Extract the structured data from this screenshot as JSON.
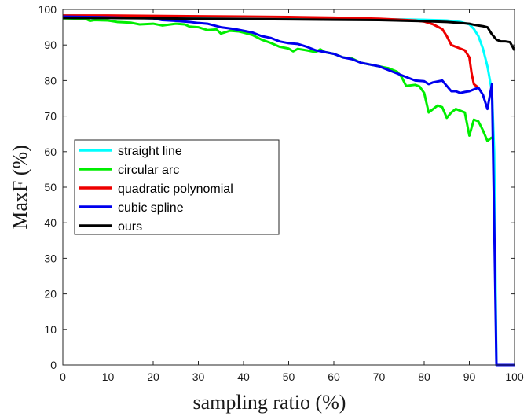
{
  "chart_data": {
    "type": "line",
    "title": "",
    "xlabel": "sampling ratio (%)",
    "ylabel": "MaxF (%)",
    "xlim": [
      0,
      100
    ],
    "ylim": [
      0,
      100
    ],
    "xticks": [
      0,
      10,
      20,
      30,
      40,
      50,
      60,
      70,
      80,
      90,
      100
    ],
    "yticks": [
      0,
      10,
      20,
      30,
      40,
      50,
      60,
      70,
      80,
      90,
      100
    ],
    "grid": false,
    "legend_position": "center-left",
    "series": [
      {
        "name": "straight line",
        "color": "#00ffff",
        "x": [
          0,
          10,
          20,
          30,
          40,
          50,
          60,
          70,
          75,
          80,
          85,
          88,
          90,
          91,
          92,
          93,
          94,
          95,
          95.5,
          96,
          96.5,
          97,
          100
        ],
        "y": [
          98.3,
          98.2,
          98.1,
          98.0,
          97.8,
          97.6,
          97.5,
          97.3,
          97.2,
          97.1,
          96.9,
          96.5,
          95.8,
          94.5,
          92.5,
          89.0,
          84.0,
          77.0,
          60.0,
          0,
          0,
          0,
          0
        ]
      },
      {
        "name": "circular arc",
        "color": "#00ee00",
        "x": [
          0,
          5,
          6,
          7,
          10,
          12,
          15,
          17,
          20,
          22,
          25,
          27,
          28,
          30,
          32,
          34,
          35,
          37,
          39,
          40,
          42,
          44,
          46,
          48,
          50,
          51,
          52,
          54,
          56,
          57,
          58,
          60,
          62,
          64,
          66,
          68,
          70,
          72,
          74,
          75,
          76,
          78,
          79,
          80,
          81,
          82,
          83,
          84,
          85,
          86,
          87,
          88,
          89,
          90,
          91,
          92,
          93,
          94,
          95
        ],
        "y": [
          97.5,
          97.4,
          96.8,
          97.0,
          96.9,
          96.5,
          96.3,
          95.8,
          96.0,
          95.5,
          96.0,
          95.8,
          95.2,
          95.0,
          94.2,
          94.4,
          93.2,
          94.0,
          93.8,
          93.5,
          92.8,
          91.5,
          90.6,
          89.5,
          89.0,
          88.2,
          88.9,
          88.5,
          88.0,
          88.8,
          88.0,
          87.5,
          86.5,
          86.2,
          85.0,
          84.5,
          84.0,
          83.5,
          82.5,
          81.0,
          78.5,
          78.8,
          78.3,
          76.5,
          71.0,
          72.0,
          73.0,
          72.5,
          69.5,
          71.0,
          72.0,
          71.5,
          71.0,
          64.5,
          69.0,
          68.5,
          66.0,
          63.0,
          64.0
        ]
      },
      {
        "name": "quadratic polynomial",
        "color": "#ee0000",
        "x": [
          0,
          10,
          20,
          30,
          40,
          50,
          60,
          70,
          75,
          78,
          80,
          82,
          84,
          85,
          86,
          87,
          88,
          89,
          90,
          90.5,
          91,
          92
        ],
        "y": [
          98.3,
          98.3,
          98.2,
          98.1,
          98.0,
          97.9,
          97.7,
          97.4,
          97.1,
          96.9,
          96.6,
          95.8,
          94.5,
          92.5,
          90.0,
          89.5,
          89.0,
          88.5,
          86.5,
          82.0,
          79.0,
          78.0
        ]
      },
      {
        "name": "cubic spline",
        "color": "#0000ee",
        "x": [
          0,
          10,
          20,
          22,
          25,
          28,
          30,
          32,
          35,
          38,
          40,
          42,
          44,
          46,
          48,
          50,
          52,
          54,
          56,
          58,
          60,
          62,
          64,
          66,
          68,
          70,
          72,
          74,
          76,
          78,
          80,
          81,
          82,
          84,
          85,
          86,
          87,
          88,
          89,
          90,
          91,
          92,
          93,
          94,
          95,
          95.5,
          96,
          97,
          98,
          99,
          100
        ],
        "y": [
          98.0,
          97.8,
          97.5,
          97.0,
          96.8,
          96.5,
          96.2,
          96.0,
          95.0,
          94.5,
          94.0,
          93.5,
          92.5,
          92.0,
          91.0,
          90.5,
          90.3,
          89.5,
          88.5,
          88.0,
          87.5,
          86.5,
          86.0,
          85.0,
          84.5,
          84.0,
          83.0,
          82.0,
          81.0,
          80.0,
          79.8,
          79.0,
          79.5,
          80.0,
          78.5,
          77.0,
          77.0,
          76.5,
          76.8,
          77.0,
          77.5,
          78.0,
          76.0,
          72.0,
          79.0,
          40.0,
          0,
          0,
          0,
          0,
          0
        ]
      },
      {
        "name": "ours",
        "color": "#000000",
        "x": [
          0,
          10,
          20,
          30,
          40,
          50,
          60,
          70,
          80,
          85,
          88,
          90,
          91,
          92,
          93,
          94,
          95,
          96,
          97,
          98,
          99,
          100
        ],
        "y": [
          97.6,
          97.6,
          97.5,
          97.4,
          97.3,
          97.2,
          97.1,
          97.0,
          96.7,
          96.5,
          96.2,
          96.0,
          95.7,
          95.5,
          95.3,
          95.0,
          93.0,
          91.5,
          91.0,
          91.0,
          90.8,
          88.5
        ]
      }
    ]
  }
}
